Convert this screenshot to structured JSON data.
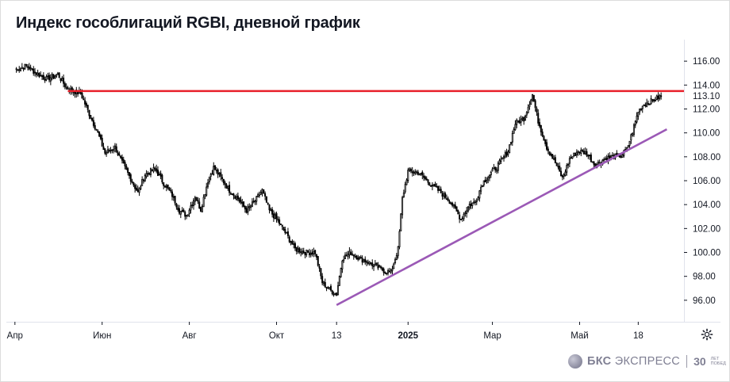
{
  "header": {
    "title": "Индекс гособлигаций RGBI, дневной график"
  },
  "brand": {
    "name_bold": "БКС",
    "name_rest": "ЭКСПРЕСС",
    "badge_number": "30",
    "badge_small": "ЛЕТ ПОБЕД",
    "color": "#7f7f93"
  },
  "icons": {
    "settings": "gear-icon",
    "logo": "bks-logo-icon"
  },
  "chart_data": {
    "type": "candlestick",
    "title": "Индекс гособлигаций RGBI, дневной график",
    "ylim": [
      94.2,
      117.8
    ],
    "y_ticks": [
      "116.00",
      "114.00",
      "112.00",
      "110.00",
      "108.00",
      "106.00",
      "104.00",
      "102.00",
      "100.00",
      "98.00",
      "96.00"
    ],
    "y_tick_values": [
      116,
      114,
      112,
      110,
      108,
      106,
      104,
      102,
      100,
      98,
      96
    ],
    "x_ticks": [
      {
        "label": "Апр",
        "bold": false
      },
      {
        "label": "Июн",
        "bold": false
      },
      {
        "label": "Авг",
        "bold": false
      },
      {
        "label": "Окт",
        "bold": false
      },
      {
        "label": "13",
        "bold": false
      },
      {
        "label": "2025",
        "bold": true
      },
      {
        "label": "Мар",
        "bold": false
      },
      {
        "label": "Май",
        "bold": false
      },
      {
        "label": "18",
        "bold": false
      }
    ],
    "x_tick_positions_days": [
      0,
      61,
      122,
      183,
      225,
      275,
      334,
      395,
      436
    ],
    "last_price_label": "113.10",
    "last_price": 113.1,
    "resistance": {
      "level": 113.5,
      "color": "#e8202a"
    },
    "support_trendline": {
      "from": {
        "day": 225,
        "value": 95.6
      },
      "to": {
        "day": 456,
        "value": 110.3
      },
      "color": "#9b59b6"
    },
    "series": [
      {
        "values": [
          [
            0,
            115.3
          ],
          [
            8,
            115.6
          ],
          [
            15,
            115.0
          ],
          [
            22,
            114.5
          ],
          [
            30,
            114.9
          ],
          [
            36,
            113.8
          ],
          [
            40,
            113.5
          ],
          [
            46,
            113.3
          ],
          [
            52,
            111.6
          ],
          [
            58,
            110.0
          ],
          [
            63,
            108.3
          ],
          [
            70,
            108.8
          ],
          [
            75,
            107.5
          ],
          [
            80,
            106.4
          ],
          [
            86,
            105.0
          ],
          [
            91,
            106.5
          ],
          [
            98,
            107.0
          ],
          [
            104,
            105.8
          ],
          [
            110,
            104.8
          ],
          [
            115,
            103.5
          ],
          [
            120,
            103.1
          ],
          [
            126,
            104.7
          ],
          [
            130,
            103.6
          ],
          [
            135,
            106.0
          ],
          [
            139,
            107.1
          ],
          [
            145,
            106.1
          ],
          [
            150,
            105.2
          ],
          [
            156,
            104.5
          ],
          [
            162,
            103.5
          ],
          [
            168,
            104.3
          ],
          [
            173,
            105.2
          ],
          [
            178,
            103.5
          ],
          [
            183,
            102.8
          ],
          [
            190,
            101.5
          ],
          [
            196,
            100.3
          ],
          [
            203,
            100.0
          ],
          [
            210,
            100.0
          ],
          [
            215,
            97.5
          ],
          [
            220,
            96.9
          ],
          [
            225,
            96.5
          ],
          [
            229,
            99.5
          ],
          [
            235,
            100.0
          ],
          [
            241,
            99.5
          ],
          [
            247,
            99.2
          ],
          [
            253,
            98.8
          ],
          [
            258,
            98.5
          ],
          [
            263,
            98.3
          ],
          [
            268,
            100.3
          ],
          [
            271,
            104.5
          ],
          [
            275,
            106.8
          ],
          [
            282,
            106.7
          ],
          [
            290,
            105.8
          ],
          [
            298,
            105.0
          ],
          [
            305,
            104.2
          ],
          [
            312,
            102.8
          ],
          [
            318,
            104.0
          ],
          [
            322,
            104.2
          ],
          [
            327,
            105.8
          ],
          [
            332,
            106.5
          ],
          [
            338,
            107.3
          ],
          [
            345,
            108.5
          ],
          [
            350,
            110.8
          ],
          [
            356,
            111.2
          ],
          [
            362,
            113.2
          ],
          [
            366,
            111.0
          ],
          [
            372,
            108.8
          ],
          [
            378,
            107.5
          ],
          [
            383,
            106.2
          ],
          [
            388,
            107.8
          ],
          [
            394,
            108.5
          ],
          [
            400,
            108.3
          ],
          [
            406,
            107.3
          ],
          [
            412,
            107.8
          ],
          [
            418,
            108.0
          ],
          [
            424,
            108.1
          ],
          [
            428,
            108.6
          ],
          [
            432,
            110.1
          ],
          [
            436,
            111.8
          ],
          [
            440,
            112.4
          ],
          [
            446,
            112.7
          ],
          [
            452,
            113.1
          ]
        ]
      }
    ]
  }
}
